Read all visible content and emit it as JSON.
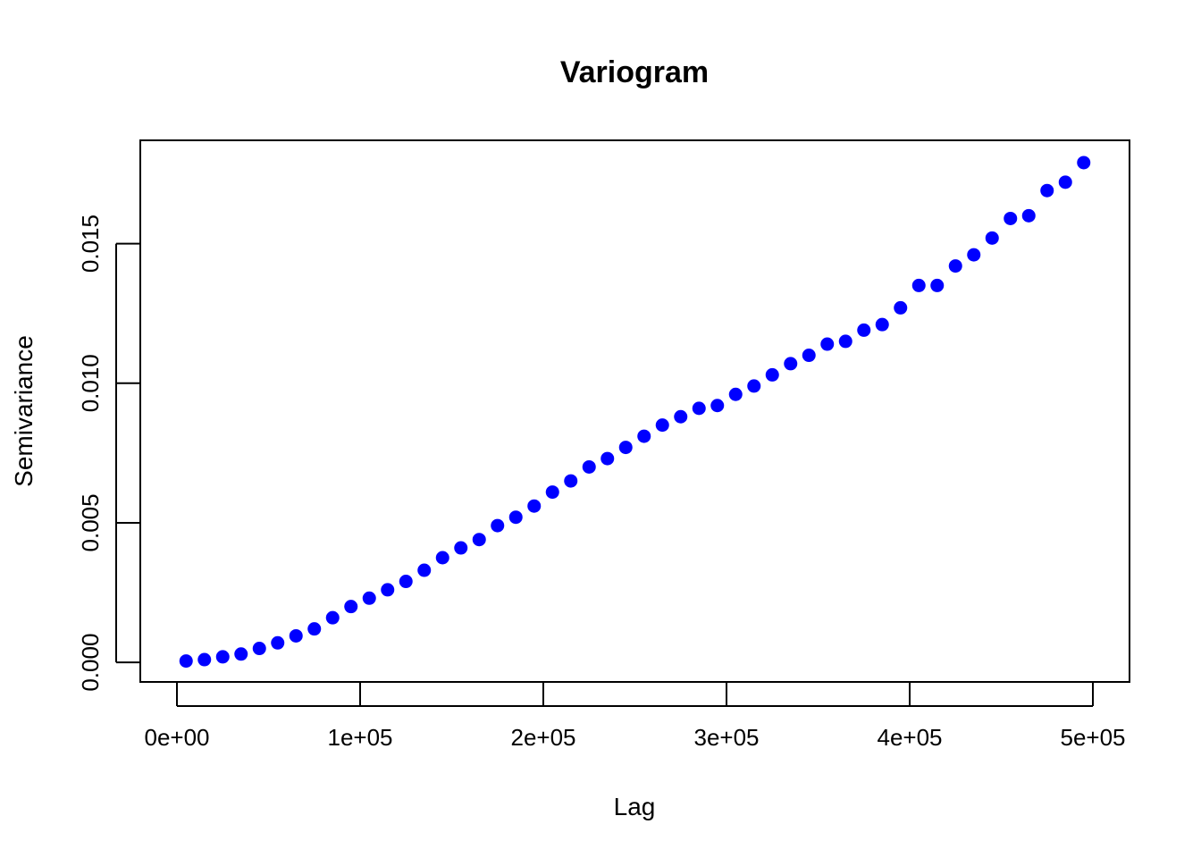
{
  "chart_data": {
    "type": "scatter",
    "title": "Variogram",
    "xlabel": "Lag",
    "ylabel": "Semivariance",
    "xlim": [
      -20000,
      520000
    ],
    "ylim": [
      -0.0007,
      0.0187
    ],
    "x_ticks": [
      {
        "value": 0,
        "label": "0e+00"
      },
      {
        "value": 100000,
        "label": "1e+05"
      },
      {
        "value": 200000,
        "label": "2e+05"
      },
      {
        "value": 300000,
        "label": "3e+05"
      },
      {
        "value": 400000,
        "label": "4e+05"
      },
      {
        "value": 500000,
        "label": "5e+05"
      }
    ],
    "y_ticks": [
      {
        "value": 0.0,
        "label": "0.000"
      },
      {
        "value": 0.005,
        "label": "0.005"
      },
      {
        "value": 0.01,
        "label": "0.010"
      },
      {
        "value": 0.015,
        "label": "0.015"
      }
    ],
    "grid": false,
    "point_color": "#0000ff",
    "series": [
      {
        "x": [
          5000,
          15000,
          25000,
          35000,
          45000,
          55000,
          65000,
          75000,
          85000,
          95000,
          105000,
          115000,
          125000,
          135000,
          145000,
          155000,
          165000,
          175000,
          185000,
          195000,
          205000,
          215000,
          225000,
          235000,
          245000,
          255000,
          265000,
          275000,
          285000,
          295000,
          305000,
          315000,
          325000,
          335000,
          345000,
          355000,
          365000,
          375000,
          385000,
          395000,
          405000,
          415000,
          425000,
          435000,
          445000,
          455000,
          465000,
          475000,
          485000,
          495000
        ],
        "y": [
          5e-05,
          0.0001,
          0.0002,
          0.0003,
          0.0005,
          0.0007,
          0.00095,
          0.0012,
          0.0016,
          0.002,
          0.0023,
          0.0026,
          0.0029,
          0.0033,
          0.00375,
          0.0041,
          0.0044,
          0.0049,
          0.0052,
          0.0056,
          0.0061,
          0.0065,
          0.007,
          0.0073,
          0.0077,
          0.0081,
          0.0085,
          0.0088,
          0.0091,
          0.0092,
          0.0096,
          0.0099,
          0.0103,
          0.0107,
          0.011,
          0.0114,
          0.0115,
          0.0119,
          0.0121,
          0.0127,
          0.0135,
          0.0135,
          0.0142,
          0.0146,
          0.0152,
          0.0159,
          0.016,
          0.0169,
          0.0172,
          0.0179
        ]
      }
    ]
  }
}
